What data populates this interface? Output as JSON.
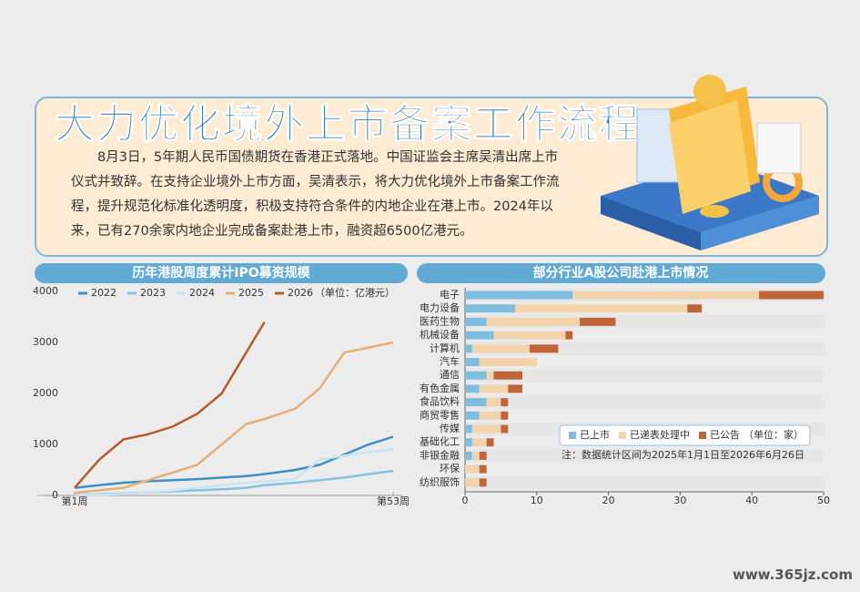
{
  "header": {
    "title": "大力优化境外上市备案工作流程",
    "body": "8月3日，5年期人民币国债期货在香港正式落地。中国证监会主席吴清出席上市仪式并致辞。在支持企业境外上市方面，吴清表示，将大力优化境外上市备案工作流程，提升规范化标准化透明度，积极支持符合条件的内地企业在港上市。2024年以来，已有270余家内地企业完成备案赴港上市，融资超6500亿港元。"
  },
  "chart_data": [
    {
      "type": "line",
      "title": "历年港股周度累计IPO募资规模",
      "unit": "（单位：亿港元）",
      "x": [
        1,
        5,
        9,
        13,
        17,
        21,
        25,
        29,
        32,
        37,
        41,
        45,
        49,
        53
      ],
      "xlim": [
        1,
        53
      ],
      "xticks": [
        {
          "value": 1,
          "label": "第1周"
        },
        {
          "value": 53,
          "label": "第53周"
        }
      ],
      "ylim": [
        0,
        4000
      ],
      "yticks": [
        0,
        1000,
        2000,
        3000,
        4000
      ],
      "series": [
        {
          "name": "2022",
          "color": "#3d8fc4",
          "values": [
            150,
            200,
            250,
            280,
            300,
            320,
            350,
            380,
            420,
            500,
            600,
            800,
            1000,
            1150
          ]
        },
        {
          "name": "2023",
          "color": "#86c1e3",
          "values": [
            0,
            20,
            40,
            60,
            80,
            100,
            120,
            150,
            200,
            250,
            300,
            350,
            420,
            480
          ]
        },
        {
          "name": "2024",
          "color": "#c9e3f3",
          "values": [
            0,
            10,
            30,
            60,
            100,
            150,
            200,
            250,
            280,
            320,
            700,
            780,
            850,
            900
          ]
        },
        {
          "name": "2025",
          "color": "#e6ad74",
          "values": [
            50,
            100,
            150,
            300,
            450,
            600,
            1000,
            1400,
            1500,
            1700,
            2100,
            2800,
            2900,
            3000
          ]
        },
        {
          "name": "2026",
          "color": "#b65a2b",
          "values": [
            150,
            700,
            1100,
            1200,
            1350,
            1600,
            2000,
            2800,
            3400,
            null,
            null,
            null,
            null,
            null
          ]
        }
      ]
    },
    {
      "type": "bar",
      "orientation": "horizontal",
      "stacked": true,
      "title": "部分行业A股公司赴港上市情况",
      "unit": "（单位：家）",
      "note": "注：数据统计区间为2025年1月1日至2026年6月26日",
      "categories": [
        "电子",
        "电力设备",
        "医药生物",
        "机械设备",
        "计算机",
        "汽车",
        "通信",
        "有色金属",
        "食品饮料",
        "商贸零售",
        "传媒",
        "基础化工",
        "非银金融",
        "环保",
        "纺织服饰"
      ],
      "xlim": [
        0,
        50
      ],
      "xticks": [
        0,
        10,
        20,
        30,
        40,
        50
      ],
      "series": [
        {
          "name": "已上市",
          "color": "#7fbde0",
          "values": [
            15,
            7,
            3,
            4,
            1,
            2,
            3,
            2,
            3,
            2,
            1,
            1,
            1,
            0,
            0
          ]
        },
        {
          "name": "已递表处理中",
          "color": "#f3d3aa",
          "values": [
            26,
            24,
            13,
            10,
            8,
            8,
            1,
            4,
            2,
            3,
            4,
            2,
            1,
            2,
            2
          ]
        },
        {
          "name": "已公告",
          "color": "#c0653a",
          "values": [
            9,
            2,
            5,
            1,
            4,
            0,
            4,
            2,
            1,
            1,
            1,
            1,
            1,
            1,
            1
          ]
        }
      ]
    }
  ],
  "watermark": "www.365jz.com"
}
